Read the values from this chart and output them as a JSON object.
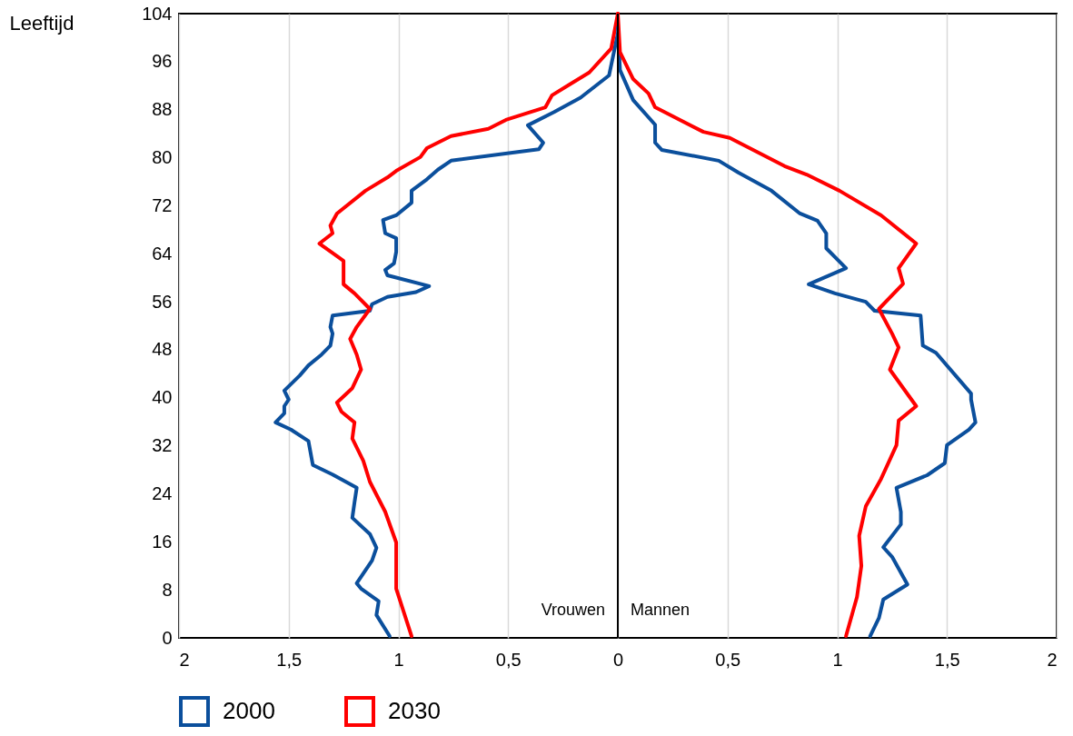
{
  "chart_data": {
    "type": "line",
    "ylabel": "Leeftijd",
    "ylim": [
      0,
      104
    ],
    "yticks": [
      0,
      8,
      16,
      24,
      32,
      40,
      48,
      56,
      64,
      72,
      80,
      88,
      96,
      104
    ],
    "xlim": [
      -2,
      2
    ],
    "xticks": [
      {
        "value": -2,
        "label": "2"
      },
      {
        "value": -1.5,
        "label": "1,5"
      },
      {
        "value": -1,
        "label": "1"
      },
      {
        "value": -0.5,
        "label": "0,5"
      },
      0,
      {
        "value": 0.5,
        "label": "0,5"
      },
      1,
      {
        "value": 1.5,
        "label": "1,5"
      },
      2
    ],
    "grid": "x",
    "legend": "bottom",
    "line_style": "solid",
    "annotations": [
      "Vrouwen",
      "Mannen"
    ],
    "ref_lines": [
      {
        "axis": "x",
        "value": 0,
        "color": "#000000"
      }
    ],
    "series": [
      {
        "name": "2000",
        "color": "#0b4f9c",
        "x": [
          0,
          -0.04,
          -0.17,
          -0.29,
          -0.41,
          -0.34,
          -0.36,
          -0.76,
          -0.82,
          -0.87,
          -0.94,
          -0.94,
          -1.01,
          -1.07,
          -1.06,
          -1.01,
          -1.01,
          -1.02,
          -1.06,
          -1.05,
          -0.86,
          -0.92,
          -1.05,
          -1.12,
          -1.13,
          -1.3,
          -1.31,
          -1.3,
          -1.31,
          -1.35,
          -1.41,
          -1.45,
          -1.52,
          -1.5,
          -1.52,
          -1.52,
          -1.56,
          -1.49,
          -1.41,
          -1.39,
          -1.3,
          -1.19,
          -1.2,
          -1.21,
          -1.13,
          -1.1,
          -1.12,
          -1.19,
          -1.17,
          -1.09,
          -1.1,
          -1.04
        ],
        "values": [
          100.7,
          93.7,
          90,
          87.6,
          85.4,
          82.5,
          81.4,
          79.5,
          78,
          76.4,
          74.5,
          72.5,
          70.4,
          69.6,
          67.4,
          66.6,
          64.3,
          62.4,
          61.3,
          60.4,
          58.6,
          57.6,
          56.8,
          55.6,
          54.5,
          53.7,
          51.8,
          50.7,
          48.7,
          47.2,
          45.4,
          43.7,
          41.2,
          39.7,
          38.6,
          37.4,
          35.9,
          34.7,
          32.8,
          28.8,
          27.2,
          25,
          22.6,
          20,
          17.3,
          15,
          12.9,
          9.1,
          8.2,
          6.1,
          3.8,
          0.3
        ]
      },
      {
        "name": "2030",
        "color": "#ff0000",
        "x": [
          0,
          -0.03,
          -0.13,
          -0.22,
          -0.3,
          -0.33,
          -0.51,
          -0.59,
          -0.76,
          -0.87,
          -0.9,
          -1.01,
          -1.05,
          -1.15,
          -1.28,
          -1.31,
          -1.3,
          -1.36,
          -1.28,
          -1.25,
          -1.25,
          -1.2,
          -1.13,
          -1.19,
          -1.22,
          -1.19,
          -1.17,
          -1.21,
          -1.28,
          -1.26,
          -1.2,
          -1.21,
          -1.16,
          -1.13,
          -1.06,
          -1.01,
          -1.01,
          -0.94
        ],
        "values": [
          104,
          98.2,
          94.2,
          92.2,
          90.4,
          88.4,
          86.3,
          84.8,
          83.6,
          81.6,
          80.1,
          77.8,
          76.7,
          74.5,
          70.7,
          68.7,
          67.4,
          65.7,
          63.6,
          62.8,
          58.9,
          57.4,
          54.8,
          51.8,
          49.8,
          47.2,
          44.7,
          41.6,
          39.2,
          37.7,
          35.9,
          33.2,
          29.5,
          26,
          21,
          15.9,
          8.2,
          0.3
        ]
      },
      {
        "color": "#0b4f9c",
        "x": [
          0,
          0.01,
          0.07,
          0.17,
          0.17,
          0.2,
          0.46,
          0.55,
          0.7,
          0.83,
          0.91,
          0.95,
          0.95,
          1.04,
          0.87,
          0.99,
          1.13,
          1.17,
          1.38,
          1.39,
          1.45,
          1.61,
          1.61,
          1.63,
          1.6,
          1.5,
          1.49,
          1.41,
          1.27,
          1.29,
          1.29,
          1.21,
          1.25,
          1.32,
          1.21,
          1.19,
          1.15
        ],
        "values": [
          101.7,
          94.6,
          89.6,
          85.5,
          82.5,
          81.3,
          79.5,
          77.5,
          74.5,
          70.7,
          69.5,
          67.4,
          64.9,
          61.6,
          58.9,
          57.4,
          56,
          54.5,
          53.7,
          48.7,
          47.5,
          40.7,
          39.7,
          35.9,
          34.7,
          32.1,
          29.1,
          27.1,
          25,
          21,
          18.9,
          15.1,
          13.5,
          8.9,
          6.4,
          3.3,
          0.3
        ]
      },
      {
        "color": "#ff0000",
        "x": [
          0,
          0.01,
          0.07,
          0.14,
          0.17,
          0.39,
          0.51,
          0.76,
          0.86,
          1.01,
          1.2,
          1.36,
          1.28,
          1.3,
          1.19,
          1.25,
          1.28,
          1.24,
          1.36,
          1.28,
          1.27,
          1.2,
          1.13,
          1.1,
          1.11,
          1.09,
          1.04
        ],
        "values": [
          104,
          97.6,
          93.1,
          90.7,
          88.4,
          84.3,
          83.3,
          78.6,
          77.2,
          74.5,
          70.4,
          65.7,
          61.6,
          59,
          54.8,
          50.7,
          48.4,
          44.7,
          38.6,
          36.2,
          32.1,
          26.5,
          21.9,
          17,
          12,
          6.8,
          0.3
        ]
      }
    ]
  }
}
